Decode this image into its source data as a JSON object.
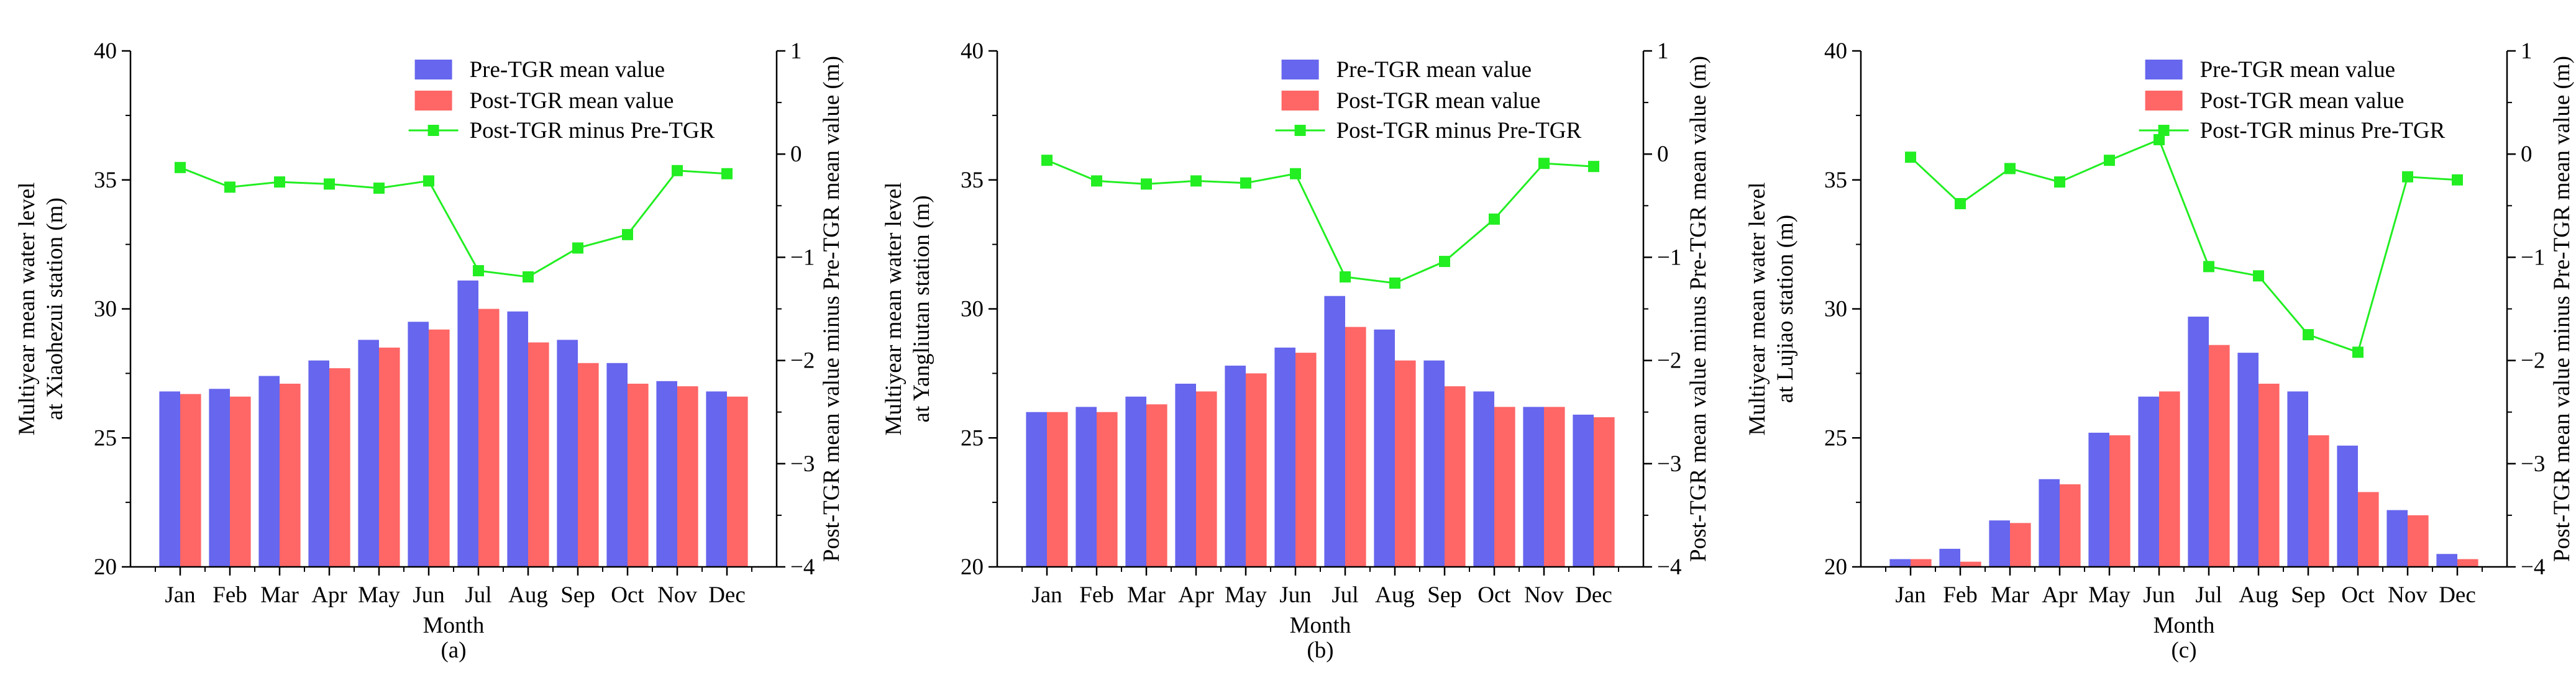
{
  "chart_data": [
    {
      "type": "bar",
      "panel_label": "(a)",
      "xlabel": "Month",
      "ylabel_lines": [
        "Multiyear mean water level",
        "at Xiaohezui station (m)"
      ],
      "y2label": "Post-TGR mean value minus Pre-TGR mean value (m)",
      "categories": [
        "Jan",
        "Feb",
        "Mar",
        "Apr",
        "May",
        "Jun",
        "Jul",
        "Aug",
        "Sep",
        "Oct",
        "Nov",
        "Dec"
      ],
      "ylim": [
        20,
        40
      ],
      "yticks": [
        "20",
        "25",
        "30",
        "35",
        "40"
      ],
      "y2lim": [
        -4,
        1
      ],
      "y2ticks": [
        "1",
        "0",
        "−1",
        "−2",
        "−3",
        "−4"
      ],
      "series": [
        {
          "name": "Pre-TGR mean value",
          "axis": "left",
          "kind": "bar",
          "values": [
            26.8,
            26.9,
            27.4,
            28.0,
            28.8,
            29.5,
            31.1,
            29.9,
            28.8,
            27.9,
            27.2,
            26.8
          ]
        },
        {
          "name": "Post-TGR mean value",
          "axis": "left",
          "kind": "bar",
          "values": [
            26.7,
            26.6,
            27.1,
            27.7,
            28.5,
            29.2,
            30.0,
            28.7,
            27.9,
            27.1,
            27.0,
            26.6
          ]
        },
        {
          "name": "Post-TGR minus Pre-TGR",
          "axis": "right",
          "kind": "line",
          "values": [
            -0.13,
            -0.32,
            -0.27,
            -0.29,
            -0.33,
            -0.26,
            -1.13,
            -1.19,
            -0.91,
            -0.78,
            -0.16,
            -0.19
          ]
        }
      ],
      "legend_position": "top-right"
    },
    {
      "type": "bar",
      "panel_label": "(b)",
      "xlabel": "Month",
      "ylabel_lines": [
        "Multiyear mean water level",
        "at Yangliutan station (m)"
      ],
      "y2label": "Post-TGR mean value minus Pre-TGR mean value (m)",
      "categories": [
        "Jan",
        "Feb",
        "Mar",
        "Apr",
        "May",
        "Jun",
        "Jul",
        "Aug",
        "Sep",
        "Oct",
        "Nov",
        "Dec"
      ],
      "ylim": [
        20,
        40
      ],
      "yticks": [
        "20",
        "25",
        "30",
        "35",
        "40"
      ],
      "y2lim": [
        -4,
        1
      ],
      "y2ticks": [
        "1",
        "0",
        "−1",
        "−2",
        "−3",
        "−4"
      ],
      "series": [
        {
          "name": "Pre-TGR mean value",
          "axis": "left",
          "kind": "bar",
          "values": [
            26.0,
            26.2,
            26.6,
            27.1,
            27.8,
            28.5,
            30.5,
            29.2,
            28.0,
            26.8,
            26.2,
            25.9
          ]
        },
        {
          "name": "Post-TGR mean value",
          "axis": "left",
          "kind": "bar",
          "values": [
            26.0,
            26.0,
            26.3,
            26.8,
            27.5,
            28.3,
            29.3,
            28.0,
            27.0,
            26.2,
            26.2,
            25.8
          ]
        },
        {
          "name": "Post-TGR minus Pre-TGR",
          "axis": "right",
          "kind": "line",
          "values": [
            -0.06,
            -0.26,
            -0.29,
            -0.26,
            -0.28,
            -0.19,
            -1.19,
            -1.25,
            -1.04,
            -0.63,
            -0.09,
            -0.12
          ]
        }
      ],
      "legend_position": "top-right"
    },
    {
      "type": "bar",
      "panel_label": "(c)",
      "xlabel": "Month",
      "ylabel_lines": [
        "Multiyear mean water level",
        "at Lujiao station (m)"
      ],
      "y2label": "Post-TGR mean value minus Pre-TGR mean value (m)",
      "categories": [
        "Jan",
        "Feb",
        "Mar",
        "Apr",
        "May",
        "Jun",
        "Jul",
        "Aug",
        "Sep",
        "Oct",
        "Nov",
        "Dec"
      ],
      "ylim": [
        20,
        40
      ],
      "yticks": [
        "20",
        "25",
        "30",
        "35",
        "40"
      ],
      "y2lim": [
        -4,
        1
      ],
      "y2ticks": [
        "1",
        "0",
        "−1",
        "−2",
        "−3",
        "−4"
      ],
      "series": [
        {
          "name": "Pre-TGR mean value",
          "axis": "left",
          "kind": "bar",
          "values": [
            20.3,
            20.7,
            21.8,
            23.4,
            25.2,
            26.6,
            29.7,
            28.3,
            26.8,
            24.7,
            22.2,
            20.5
          ]
        },
        {
          "name": "Post-TGR mean value",
          "axis": "left",
          "kind": "bar",
          "values": [
            20.3,
            20.2,
            21.7,
            23.2,
            25.1,
            26.8,
            28.6,
            27.1,
            25.1,
            22.9,
            22.0,
            20.3
          ]
        },
        {
          "name": "Post-TGR minus Pre-TGR",
          "axis": "right",
          "kind": "line",
          "values": [
            -0.03,
            -0.48,
            -0.14,
            -0.27,
            -0.06,
            0.14,
            -1.09,
            -1.18,
            -1.75,
            -1.92,
            -0.22,
            -0.25
          ]
        }
      ],
      "legend_position": "top-right"
    }
  ],
  "colors": {
    "pre_bar": "#6666ee",
    "post_bar": "#ff6666",
    "diff_line": "#22ee22",
    "axis": "#000000"
  }
}
